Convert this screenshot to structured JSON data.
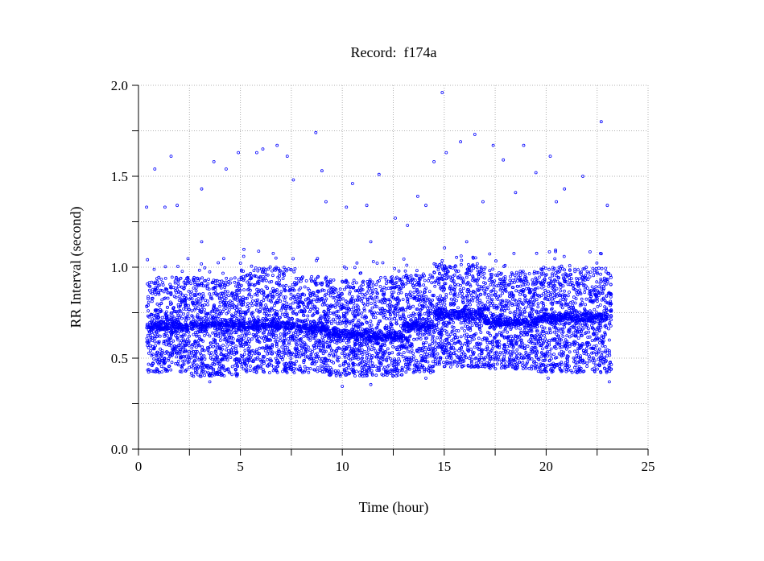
{
  "chart_data": {
    "type": "scatter",
    "title": "Record:  f174a",
    "xlabel": "Time (hour)",
    "ylabel": "RR Interval (second)",
    "xlim": [
      0,
      25
    ],
    "ylim": [
      0.0,
      2.0
    ],
    "x_ticks": [
      "0",
      "5",
      "10",
      "15",
      "20",
      "25"
    ],
    "x_tick_values": [
      0,
      5,
      10,
      15,
      20,
      25
    ],
    "y_ticks": [
      "0.0",
      "0.5",
      "1.0",
      "1.5",
      "2.0"
    ],
    "y_tick_values": [
      0.0,
      0.5,
      1.0,
      1.5,
      2.0
    ],
    "grid": true,
    "marker_color": "#0000ff",
    "series_density_description_note": "dense RR cloud summarised by segments: [t_start, t_end, center, low, high]",
    "segments": [
      [
        0.4,
        2.5,
        0.67,
        0.42,
        0.95
      ],
      [
        2.55,
        5.0,
        0.68,
        0.4,
        0.95
      ],
      [
        5.0,
        7.5,
        0.68,
        0.42,
        1.0
      ],
      [
        7.5,
        9.3,
        0.67,
        0.42,
        0.95
      ],
      [
        9.3,
        11.3,
        0.63,
        0.4,
        0.93
      ],
      [
        11.3,
        13.0,
        0.62,
        0.4,
        0.95
      ],
      [
        13.0,
        14.5,
        0.68,
        0.42,
        0.96
      ],
      [
        14.5,
        17.0,
        0.74,
        0.45,
        1.02
      ],
      [
        17.0,
        19.6,
        0.7,
        0.44,
        0.98
      ],
      [
        19.6,
        23.2,
        0.72,
        0.42,
        1.0
      ]
    ],
    "outliers": [
      [
        0.4,
        1.33
      ],
      [
        0.8,
        1.54
      ],
      [
        1.3,
        1.33
      ],
      [
        1.6,
        1.61
      ],
      [
        1.9,
        1.34
      ],
      [
        3.1,
        1.43
      ],
      [
        3.7,
        1.58
      ],
      [
        4.3,
        1.54
      ],
      [
        4.9,
        1.63
      ],
      [
        5.8,
        1.63
      ],
      [
        6.1,
        1.65
      ],
      [
        6.8,
        1.67
      ],
      [
        7.3,
        1.61
      ],
      [
        7.6,
        1.48
      ],
      [
        8.7,
        1.74
      ],
      [
        9.0,
        1.53
      ],
      [
        9.2,
        1.36
      ],
      [
        10.2,
        1.33
      ],
      [
        10.5,
        1.46
      ],
      [
        11.2,
        1.34
      ],
      [
        11.8,
        1.51
      ],
      [
        12.6,
        1.27
      ],
      [
        13.2,
        1.23
      ],
      [
        13.7,
        1.39
      ],
      [
        14.5,
        1.58
      ],
      [
        14.9,
        1.96
      ],
      [
        15.1,
        1.63
      ],
      [
        15.8,
        1.69
      ],
      [
        16.5,
        1.73
      ],
      [
        17.4,
        1.67
      ],
      [
        17.9,
        1.59
      ],
      [
        18.9,
        1.67
      ],
      [
        19.5,
        1.52
      ],
      [
        20.2,
        1.61
      ],
      [
        20.9,
        1.43
      ],
      [
        21.8,
        1.5
      ],
      [
        22.7,
        1.8
      ],
      [
        23.0,
        1.34
      ],
      [
        14.1,
        1.34
      ],
      [
        16.9,
        1.36
      ],
      [
        18.5,
        1.41
      ],
      [
        20.5,
        1.36
      ],
      [
        11.4,
        1.14
      ],
      [
        3.1,
        1.14
      ],
      [
        16.1,
        1.14
      ],
      [
        3.5,
        0.37
      ],
      [
        10.0,
        0.345
      ],
      [
        11.4,
        0.355
      ],
      [
        20.1,
        0.39
      ],
      [
        23.1,
        0.37
      ],
      [
        14.1,
        0.39
      ]
    ]
  }
}
